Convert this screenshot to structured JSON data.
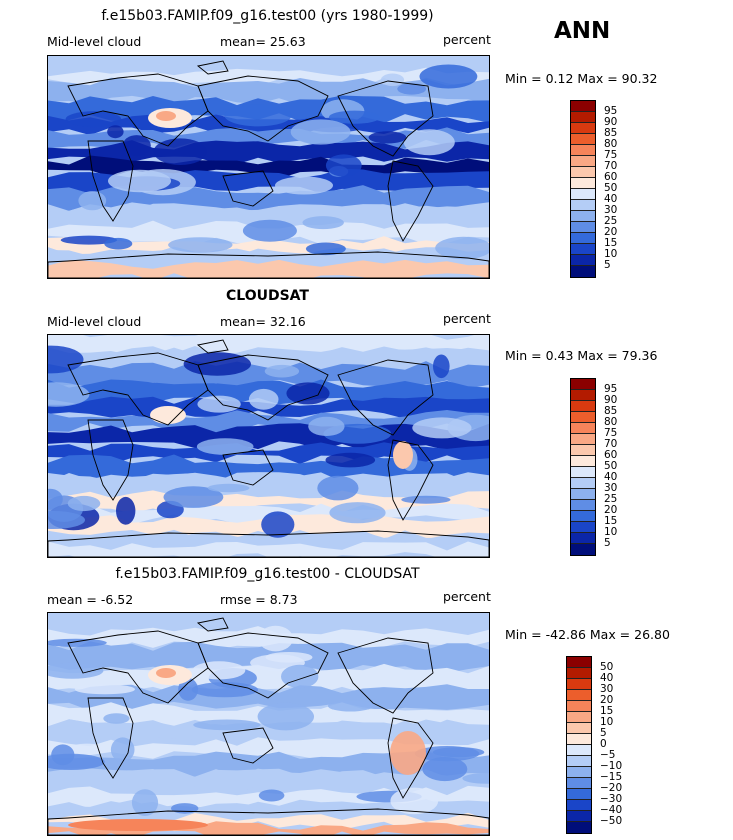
{
  "season": "ANN",
  "panels": [
    {
      "id": "model",
      "title": "f.e15b03.FAMIP.f09_g16.test00 (yrs 1980-1999)",
      "left_label": "Mid-level cloud",
      "mid_label": "mean=  25.63",
      "units": "percent",
      "minmax": "Min =   0.12 Max =  90.32",
      "levels": [
        "95",
        "90",
        "85",
        "80",
        "75",
        "70",
        "60",
        "50",
        "40",
        "30",
        "25",
        "20",
        "15",
        "10",
        "5"
      ],
      "colors": [
        "#8b0000",
        "#b31b00",
        "#d83a10",
        "#ec5e2c",
        "#f6845a",
        "#f9a885",
        "#fbc8ad",
        "#fde9dc",
        "#dce8fb",
        "#b4cdf6",
        "#8db1ee",
        "#5f8de5",
        "#346ada",
        "#1a45c8",
        "#0b26a8",
        "#000e7a"
      ]
    },
    {
      "id": "obs",
      "title": "CLOUDSAT",
      "left_label": "Mid-level cloud",
      "mid_label": "mean=  32.16",
      "units": "percent",
      "minmax": "Min =   0.43 Max =  79.36",
      "levels": [
        "95",
        "90",
        "85",
        "80",
        "75",
        "70",
        "60",
        "50",
        "40",
        "30",
        "25",
        "20",
        "15",
        "10",
        "5"
      ],
      "colors": [
        "#8b0000",
        "#b31b00",
        "#d83a10",
        "#ec5e2c",
        "#f6845a",
        "#f9a885",
        "#fbc8ad",
        "#fde9dc",
        "#dce8fb",
        "#b4cdf6",
        "#8db1ee",
        "#5f8de5",
        "#346ada",
        "#1a45c8",
        "#0b26a8",
        "#000e7a"
      ]
    },
    {
      "id": "diff",
      "title": "f.e15b03.FAMIP.f09_g16.test00 - CLOUDSAT",
      "left_label": "mean =   -6.52",
      "mid_label": "rmse =    8.73",
      "units": "percent",
      "minmax": "Min = -42.86 Max =  26.80",
      "levels": [
        "50",
        "40",
        "30",
        "20",
        "15",
        "10",
        "5",
        "0",
        "−5",
        "−10",
        "−15",
        "−20",
        "−30",
        "−40",
        "−50"
      ],
      "colors": [
        "#8b0000",
        "#b31b00",
        "#d83a10",
        "#ec5e2c",
        "#f6845a",
        "#f9a885",
        "#fbc8ad",
        "#fde9dc",
        "#dce8fb",
        "#b4cdf6",
        "#8db1ee",
        "#5f8de5",
        "#346ada",
        "#1a45c8",
        "#0b26a8",
        "#000e7a"
      ]
    }
  ]
}
